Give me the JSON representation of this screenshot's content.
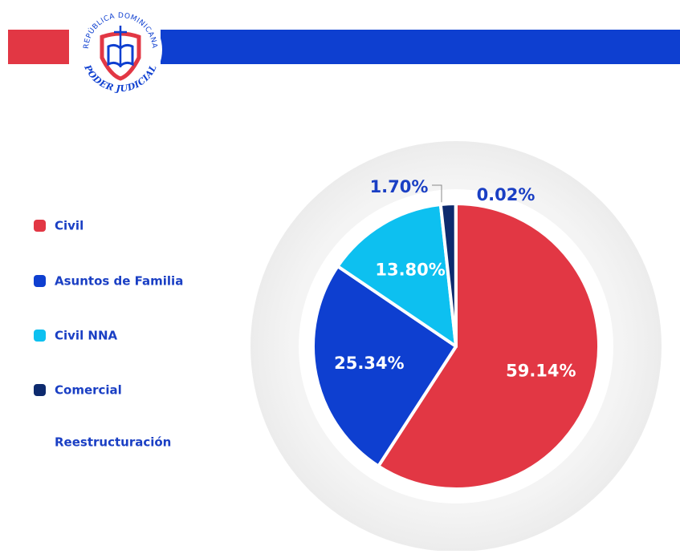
{
  "header": {
    "top_text": "REPÚBLICA DOMINICANA",
    "bottom_text": "PODER JUDICIAL"
  },
  "chart_data": {
    "type": "pie",
    "categories": [
      "Civil",
      "Asuntos de Familia",
      "Civil NNA",
      "Comercial",
      "Reestructuración"
    ],
    "values": [
      59.14,
      25.34,
      13.8,
      1.7,
      0.02
    ],
    "value_labels": [
      "59.14%",
      "25.34%",
      "13.80%",
      "1.70%",
      "0.02%"
    ],
    "colors": [
      "#e23744",
      "#0e3fd0",
      "#0dc0f0",
      "#0d2a6e",
      "#ffffff"
    ]
  }
}
